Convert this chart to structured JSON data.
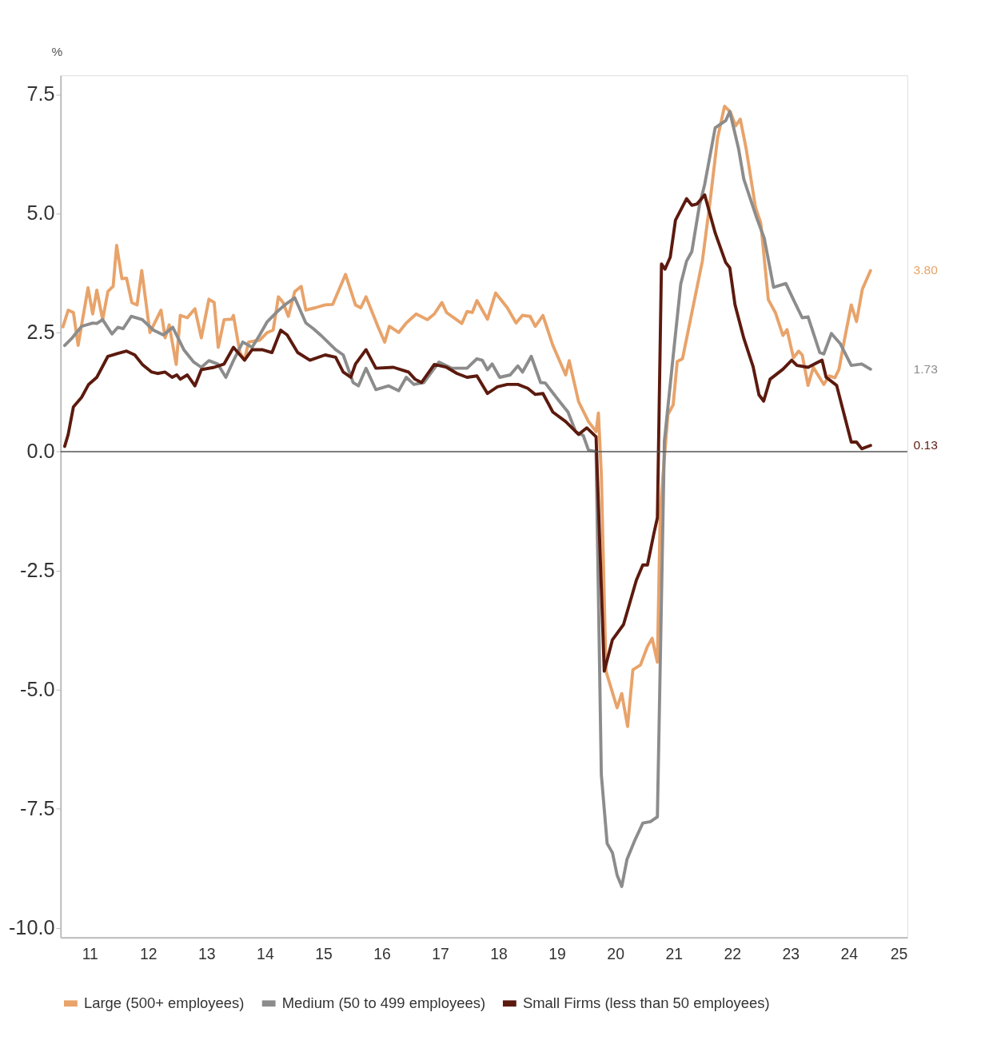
{
  "chart_data": {
    "type": "line",
    "ylabel": "%",
    "xlim": [
      10.5,
      25
    ],
    "ylim": [
      -10.2,
      7.9
    ],
    "xticks": [
      11,
      12,
      13,
      14,
      15,
      16,
      17,
      18,
      19,
      20,
      21,
      22,
      23,
      24,
      25
    ],
    "yticks": [
      {
        "value": -10,
        "label": "-10.0"
      },
      {
        "value": -7.5,
        "label": "-7.5"
      },
      {
        "value": -5,
        "label": "-5.0"
      },
      {
        "value": -2.5,
        "label": "-2.5"
      },
      {
        "value": 0,
        "label": "0.0"
      },
      {
        "value": 2.5,
        "label": "2.5"
      },
      {
        "value": 5,
        "label": "5.0"
      },
      {
        "value": 7.5,
        "label": "7.5"
      }
    ],
    "grid": false,
    "legend": "bottom",
    "line_style": "solid",
    "marker": "none",
    "ref_lines": [
      {
        "axis": "y",
        "value": 0,
        "label": null,
        "color": "#555555"
      }
    ],
    "series": [
      {
        "name": "Large (500+ employees)",
        "color": "#e8a36a",
        "x": [
          10.54,
          10.63,
          10.72,
          10.8,
          10.97,
          11.05,
          11.12,
          11.22,
          11.31,
          11.4,
          11.46,
          11.55,
          11.63,
          11.72,
          11.81,
          11.89,
          12.03,
          12.22,
          12.29,
          12.36,
          12.48,
          12.55,
          12.67,
          12.8,
          12.91,
          13.04,
          13.13,
          13.2,
          13.3,
          13.43,
          13.46,
          13.57,
          13.65,
          13.72,
          13.91,
          14.04,
          14.14,
          14.23,
          14.31,
          14.4,
          14.51,
          14.62,
          14.7,
          14.86,
          15.03,
          15.16,
          15.38,
          15.55,
          15.64,
          15.73,
          15.94,
          16.05,
          16.13,
          16.29,
          16.42,
          16.59,
          16.78,
          16.9,
          17.03,
          17.11,
          17.37,
          17.46,
          17.55,
          17.63,
          17.81,
          17.95,
          18.15,
          18.3,
          18.41,
          18.54,
          18.63,
          18.76,
          18.93,
          19.15,
          19.21,
          19.37,
          19.54,
          19.67,
          19.71,
          19.76,
          19.84,
          20.03,
          20.11,
          20.21,
          20.3,
          20.43,
          20.55,
          20.63,
          20.72,
          20.77,
          20.9,
          20.99,
          21.06,
          21.15,
          21.49,
          21.62,
          21.75,
          21.87,
          21.97,
          22.06,
          22.14,
          22.24,
          22.4,
          22.49,
          22.62,
          22.74,
          22.87,
          22.94,
          23.05,
          23.14,
          23.2,
          23.3,
          23.39,
          23.57,
          23.66,
          23.76,
          23.83,
          23.92,
          24.04,
          24.13,
          24.23,
          24.37
        ],
        "values": [
          2.62,
          2.97,
          2.92,
          2.23,
          3.44,
          2.89,
          3.39,
          2.77,
          3.36,
          3.47,
          4.33,
          3.63,
          3.64,
          3.13,
          3.08,
          3.8,
          2.5,
          2.97,
          2.39,
          2.66,
          1.83,
          2.86,
          2.81,
          3.0,
          2.39,
          3.2,
          3.13,
          2.19,
          2.77,
          2.78,
          2.86,
          2.08,
          1.92,
          2.3,
          2.34,
          2.5,
          2.55,
          3.25,
          3.13,
          2.84,
          3.36,
          3.47,
          2.97,
          3.02,
          3.08,
          3.09,
          3.72,
          3.08,
          3.02,
          3.25,
          2.61,
          2.3,
          2.63,
          2.5,
          2.7,
          2.89,
          2.77,
          2.89,
          3.13,
          2.92,
          2.69,
          2.94,
          2.92,
          3.17,
          2.78,
          3.33,
          3.02,
          2.7,
          2.86,
          2.84,
          2.63,
          2.86,
          2.23,
          1.61,
          1.91,
          1.05,
          0.63,
          0.42,
          0.81,
          -0.47,
          -4.61,
          -5.38,
          -5.08,
          -5.77,
          -4.58,
          -4.48,
          -4.09,
          -3.92,
          -4.42,
          -1.19,
          0.78,
          0.98,
          1.89,
          1.95,
          4.0,
          5.23,
          6.58,
          7.25,
          7.13,
          6.84,
          6.98,
          6.36,
          5.13,
          4.8,
          3.19,
          2.92,
          2.44,
          2.56,
          1.97,
          2.11,
          2.03,
          1.39,
          1.77,
          1.41,
          1.59,
          1.55,
          1.73,
          2.33,
          3.08,
          2.73,
          3.41,
          3.8
        ]
      },
      {
        "name": "Medium (50 to 499 employees)",
        "color": "#8c8c8c",
        "x": [
          10.57,
          10.7,
          10.86,
          11.05,
          11.12,
          11.22,
          11.38,
          11.48,
          11.57,
          11.71,
          11.9,
          12.09,
          12.26,
          12.42,
          12.61,
          12.78,
          12.91,
          13.04,
          13.19,
          13.33,
          13.46,
          13.62,
          13.78,
          13.91,
          14.04,
          14.21,
          14.34,
          14.51,
          14.7,
          14.83,
          14.95,
          15.21,
          15.34,
          15.51,
          15.6,
          15.73,
          15.9,
          16.12,
          16.29,
          16.42,
          16.55,
          16.72,
          16.98,
          17.2,
          17.46,
          17.63,
          17.72,
          17.81,
          17.89,
          18.02,
          18.2,
          18.33,
          18.41,
          18.56,
          18.72,
          18.8,
          19.02,
          19.19,
          19.32,
          19.45,
          19.54,
          19.67,
          19.76,
          19.86,
          19.95,
          20.03,
          20.11,
          20.2,
          20.33,
          20.47,
          20.6,
          20.72,
          20.84,
          20.99,
          21.12,
          21.22,
          21.31,
          21.44,
          21.53,
          21.71,
          21.89,
          21.96,
          22.11,
          22.2,
          22.42,
          22.55,
          22.71,
          22.92,
          23.05,
          23.2,
          23.3,
          23.5,
          23.57,
          23.7,
          23.85,
          24.04,
          24.22,
          24.37
        ],
        "values": [
          2.23,
          2.39,
          2.63,
          2.7,
          2.69,
          2.77,
          2.47,
          2.61,
          2.58,
          2.84,
          2.77,
          2.55,
          2.45,
          2.61,
          2.14,
          1.88,
          1.77,
          1.91,
          1.84,
          1.56,
          1.91,
          2.3,
          2.19,
          2.45,
          2.73,
          2.94,
          3.08,
          3.23,
          2.7,
          2.58,
          2.45,
          2.14,
          2.03,
          1.45,
          1.38,
          1.75,
          1.3,
          1.38,
          1.28,
          1.56,
          1.41,
          1.45,
          1.88,
          1.75,
          1.75,
          1.95,
          1.92,
          1.72,
          1.84,
          1.56,
          1.61,
          1.8,
          1.67,
          2.0,
          1.45,
          1.44,
          1.09,
          0.83,
          0.42,
          0.34,
          0.03,
          0,
          -6.78,
          -8.23,
          -8.42,
          -8.89,
          -9.13,
          -8.56,
          -8.17,
          -7.8,
          -7.77,
          -7.67,
          0.22,
          2.0,
          3.52,
          4.0,
          4.2,
          5.17,
          5.61,
          6.8,
          6.95,
          7.14,
          6.36,
          5.72,
          4.91,
          4.48,
          3.45,
          3.53,
          3.19,
          2.81,
          2.83,
          2.08,
          2.05,
          2.48,
          2.27,
          1.81,
          1.84,
          1.73
        ]
      },
      {
        "name": "Small Firms (less than 50 employees)",
        "color": "#5c1a0e",
        "x": [
          10.57,
          10.63,
          10.72,
          10.86,
          10.98,
          11.12,
          11.31,
          11.48,
          11.63,
          11.77,
          11.9,
          12.06,
          12.16,
          12.29,
          12.41,
          12.49,
          12.55,
          12.67,
          12.8,
          12.91,
          13.13,
          13.3,
          13.46,
          13.65,
          13.78,
          13.95,
          14.12,
          14.27,
          14.38,
          14.56,
          14.77,
          15.03,
          15.21,
          15.34,
          15.47,
          15.55,
          15.73,
          15.9,
          16.2,
          16.46,
          16.57,
          16.68,
          16.9,
          17.11,
          17.29,
          17.46,
          17.63,
          17.81,
          17.98,
          18.15,
          18.33,
          18.5,
          18.63,
          18.76,
          18.93,
          19.15,
          19.37,
          19.51,
          19.67,
          19.81,
          19.95,
          20.14,
          20.36,
          20.47,
          20.55,
          20.66,
          20.72,
          20.79,
          20.85,
          20.94,
          21.03,
          21.22,
          21.31,
          21.4,
          21.53,
          21.71,
          21.89,
          21.96,
          22.05,
          22.2,
          22.36,
          22.46,
          22.54,
          22.65,
          22.87,
          23.02,
          23.11,
          23.3,
          23.54,
          23.61,
          23.79,
          23.92,
          24.04,
          24.13,
          24.22,
          24.37
        ],
        "values": [
          0.11,
          0.36,
          0.94,
          1.14,
          1.41,
          1.56,
          2.0,
          2.06,
          2.11,
          2.03,
          1.83,
          1.67,
          1.64,
          1.67,
          1.56,
          1.61,
          1.52,
          1.61,
          1.38,
          1.72,
          1.77,
          1.84,
          2.19,
          1.92,
          2.14,
          2.14,
          2.08,
          2.55,
          2.45,
          2.08,
          1.92,
          2.03,
          1.98,
          1.67,
          1.56,
          1.84,
          2.14,
          1.75,
          1.77,
          1.67,
          1.52,
          1.45,
          1.83,
          1.77,
          1.64,
          1.56,
          1.59,
          1.22,
          1.36,
          1.41,
          1.41,
          1.33,
          1.2,
          1.22,
          0.83,
          0.63,
          0.36,
          0.5,
          0.31,
          -4.61,
          -3.95,
          -3.63,
          -2.7,
          -2.38,
          -2.38,
          -1.72,
          -1.39,
          3.94,
          3.83,
          4.08,
          4.86,
          5.31,
          5.17,
          5.2,
          5.39,
          4.59,
          3.97,
          3.86,
          3.08,
          2.38,
          1.78,
          1.19,
          1.06,
          1.52,
          1.73,
          1.92,
          1.81,
          1.77,
          1.92,
          1.56,
          1.39,
          0.77,
          0.2,
          0.2,
          0.06,
          0.13
        ]
      }
    ],
    "annotations": [
      "3.80",
      "1.73",
      "0.13"
    ]
  }
}
